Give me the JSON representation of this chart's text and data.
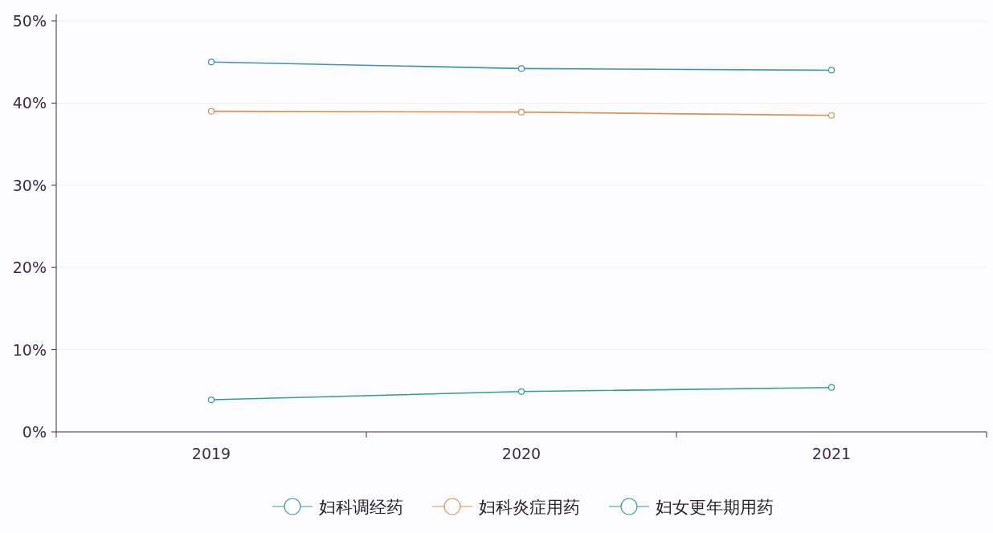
{
  "chart_data": {
    "type": "line",
    "categories": [
      "2019",
      "2020",
      "2021"
    ],
    "series": [
      {
        "name": "妇科调经药",
        "color": "#3f95b0",
        "values": [
          45.0,
          44.2,
          44.0
        ]
      },
      {
        "name": "妇科炎症用药",
        "color": "#d9915a",
        "values": [
          39.0,
          38.9,
          38.5
        ]
      },
      {
        "name": "妇女更年期用药",
        "color": "#2e9e96",
        "values": [
          3.9,
          4.9,
          5.4
        ]
      }
    ],
    "ylim": [
      0,
      50
    ],
    "yticks": [
      {
        "value": 0,
        "label": "0%"
      },
      {
        "value": 10,
        "label": "10%"
      },
      {
        "value": 20,
        "label": "20%"
      },
      {
        "value": 30,
        "label": "30%"
      },
      {
        "value": 40,
        "label": "40%"
      },
      {
        "value": 50,
        "label": "50%"
      }
    ],
    "grid": "y",
    "legend": "bottom",
    "marker": "circle",
    "line_style": "solid"
  }
}
